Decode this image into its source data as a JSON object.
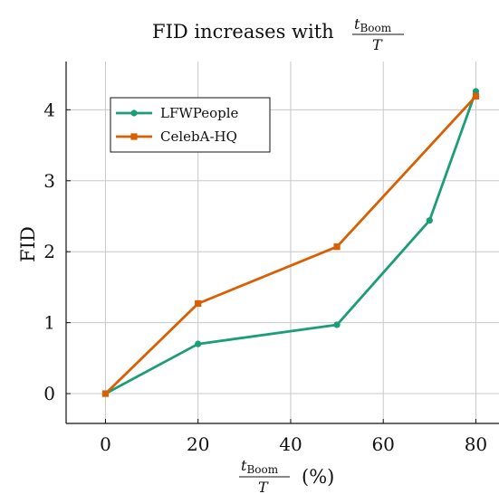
{
  "chart_data": {
    "type": "line",
    "title_prefix": "FID increases with",
    "title_fraction": {
      "numerator": "t",
      "numerator_subscript": "Boom",
      "denominator": "T"
    },
    "xlabel_fraction": {
      "numerator": "t",
      "numerator_subscript": "Boom",
      "denominator": "T"
    },
    "xlabel_suffix": "(%)",
    "ylabel": "FID",
    "xlim": [
      -8.5,
      85
    ],
    "ylim": [
      -0.42,
      4.68
    ],
    "x_ticks": [
      0,
      20,
      40,
      60,
      80
    ],
    "y_ticks": [
      0,
      1,
      2,
      3,
      4
    ],
    "grid": true,
    "legend_position": "top-left",
    "series": [
      {
        "name": "LFWPeople",
        "color": "#1b9e77",
        "marker": "circle",
        "x": [
          0,
          20,
          50,
          70,
          80
        ],
        "y": [
          0,
          0.7,
          0.97,
          2.44,
          4.26
        ]
      },
      {
        "name": "CelebA-HQ",
        "color": "#d95f02",
        "marker": "square",
        "x": [
          0,
          20,
          50,
          80
        ],
        "y": [
          0,
          1.27,
          2.07,
          4.19
        ]
      }
    ]
  }
}
